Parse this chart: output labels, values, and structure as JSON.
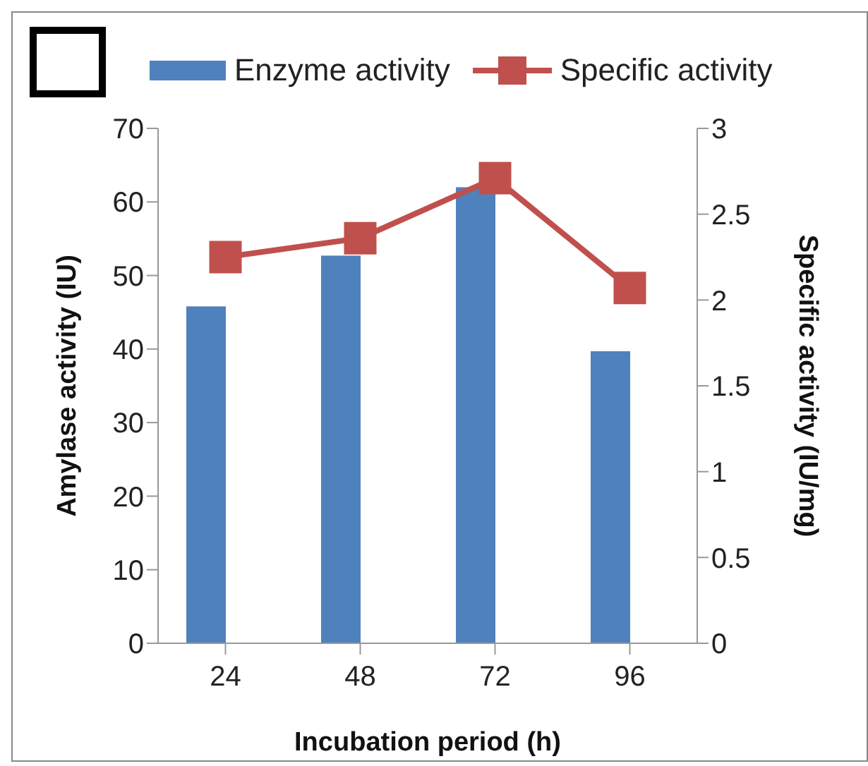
{
  "chart_data": {
    "type": "bar",
    "categories": [
      "24",
      "48",
      "72",
      "96"
    ],
    "xlabel": "Incubation period (h)",
    "ylabel": "Amylase activity (IU)",
    "y2label": "Specific activity (IU/mg)",
    "series": [
      {
        "name": "Enzyme activity",
        "color": "#4f81bd",
        "values": [
          45.8,
          52.7,
          62.0,
          39.7
        ]
      },
      {
        "name": "Specific activity",
        "type": "line",
        "axis": "y2",
        "color": "#c0504d",
        "marker": "square",
        "values": [
          2.25,
          2.36,
          2.71,
          2.07
        ]
      }
    ],
    "ylim": [
      0,
      70
    ],
    "yticks": [
      0,
      10,
      20,
      30,
      40,
      50,
      60,
      70
    ],
    "y2lim": [
      0,
      3
    ],
    "y2ticks": [
      0,
      0.5,
      1,
      1.5,
      2,
      2.5,
      3
    ],
    "legend": "top"
  }
}
